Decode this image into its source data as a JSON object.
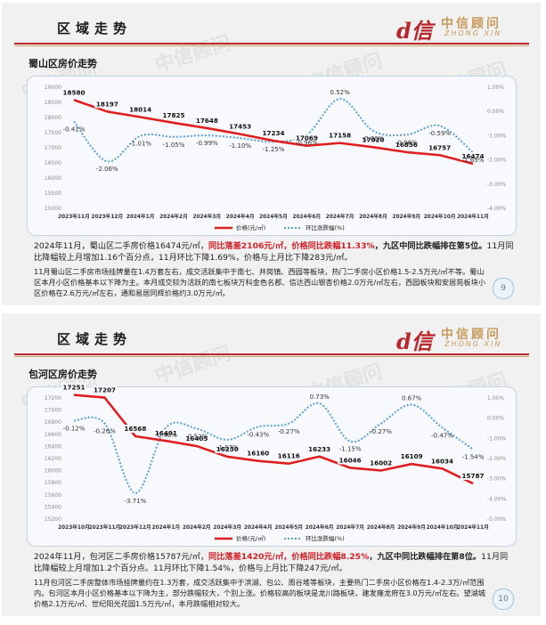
{
  "colors": {
    "price_line": "#e02020",
    "change_line": "#5aa0d8",
    "accent": "#b8272c",
    "gold": "#c79a5a"
  },
  "logo": {
    "mark": "d信",
    "cn": "中信顾问",
    "en": "ZHONG XIN"
  },
  "watermark": "中信顾问",
  "slides": [
    {
      "header": "区域走势",
      "chart_title": "蜀山区房价走势",
      "page_number": "9",
      "desc_line1": [
        {
          "t": "2024年11月，蜀山区二手房价格16474元/㎡，",
          "s": ""
        },
        {
          "t": "同比落差2106元/㎡，价格同比跌幅11.33%",
          "s": "hl"
        },
        {
          "t": "，九区中同比跌幅排在第5位。",
          "s": "b"
        },
        {
          "t": "11月同比降幅较上月增加1.16个百分点，11月环比下降1.69%，价格与上月比下降283元/㎡。",
          "s": ""
        }
      ],
      "desc_line2": "11月蜀山区二手房市场挂牌量在1.4万套左右，成交活跃集中于南七、井岗镇、西园等板块，热门二手房小区价格1.5-2.5万元/㎡不等。蜀山区本月小区价格基本以下降为主。本月成交较为活跃的南七板块万科金色名郡、信达西山银杏价格2.0万元/㎡左右，西园板块和安居苑板块小区价格在2.6万元/㎡左右，通和易居同辉价格约3.0万元/㎡。",
      "chart_data": {
        "type": "line",
        "categories": [
          "2023年11月",
          "2023年12月",
          "2024年1月",
          "2024年2月",
          "2024年3月",
          "2024年4月",
          "2024年5月",
          "2024年6月",
          "2024年7月",
          "2024年8月",
          "2024年9月",
          "2024年10月",
          "2024年11月"
        ],
        "series": [
          {
            "name": "价格(元/㎡)",
            "axis": "left",
            "values": [
              18580,
              18197,
              18014,
              17825,
              17648,
              17453,
              17234,
              17069,
              17158,
              17020,
              16856,
              16757,
              16474
            ],
            "labels": [
              "18580",
              "18197",
              "18014",
              "17825",
              "17648",
              "17453",
              "17234",
              "17069",
              "17158",
              "17020",
              "16856",
              "16757",
              "16474"
            ]
          },
          {
            "name": "环比涨跌幅(%)",
            "axis": "right",
            "values": [
              -0.41,
              -2.06,
              -1.01,
              -1.05,
              -0.99,
              -1.1,
              -1.25,
              -0.96,
              0.52,
              -0.8,
              -0.96,
              -0.59,
              -1.69
            ],
            "labels": [
              "-0.41%",
              "-2.06%",
              "-1.01%",
              "-1.05%",
              "-0.99%",
              "-1.10%",
              "-1.25%",
              "-0.96%",
              "0.52%",
              "-0.80%",
              "-0.96%",
              "-0.59%",
              "-1.69%"
            ]
          }
        ],
        "ylim": [
          15000,
          19000
        ],
        "yticks": [
          15000,
          15500,
          16000,
          16500,
          17000,
          17500,
          18000,
          18500,
          19000
        ],
        "ytick_labels": [
          "15000",
          "15500",
          "16000",
          "16500",
          "17000",
          "17500",
          "18000",
          "18500",
          "19000"
        ],
        "y2lim": [
          -4.0,
          1.0
        ],
        "y2ticks": [
          1.0,
          0.0,
          -1.0,
          -2.0,
          -3.0,
          -4.0
        ],
        "y2tick_labels": [
          "1.00%",
          "0.00%",
          "-1.00%",
          "-2.00%",
          "-3.00%",
          "-4.00%"
        ],
        "legend_position": "bottom",
        "grid": false
      }
    },
    {
      "header": "区域走势",
      "chart_title": "包河区房价走势",
      "page_number": "10",
      "desc_line1": [
        {
          "t": "2024年11月，包河区二手房价格15787元/㎡，",
          "s": ""
        },
        {
          "t": "同比落差1420元/㎡，价格同比跌幅8.25%",
          "s": "hl"
        },
        {
          "t": "，九区中同比跌幅排在第8位。",
          "s": "b"
        },
        {
          "t": "11月同比降幅较上月增加1.2个百分点。11月环比下降1.54%，价格与上月比下降247元/㎡。",
          "s": ""
        }
      ],
      "desc_line2": "11月包河区二手房整体市场挂牌量约在1.3万套，成交活跃集中于滨湖、包公、周谷堆等板块，主要热门二手房小区价格在1.4-2.3万/㎡范围内。包河区本月小区价格基本以下降为主，部分跌幅较大，个别上涨。价格较高的板块是龙川路板块，建发雍龙府在3.0万元/㎡左右。望湖城价格2.1万元/㎡、世纪阳光花园1.5万元/㎡，本月跌幅相对较大。",
      "chart_data": {
        "type": "line",
        "categories": [
          "2023年10月",
          "2023年11月",
          "2023年12月",
          "2024年1月",
          "2024年2月",
          "2024年3月",
          "2024年4月",
          "2024年5月",
          "2024年6月",
          "2024年7月",
          "2024年8月",
          "2024年9月",
          "2024年10月",
          "2024年11月"
        ],
        "series": [
          {
            "name": "价格(元/㎡)",
            "axis": "left",
            "values": [
              17251,
              17207,
              16568,
              16491,
              16405,
              16230,
              16160,
              16116,
              16233,
              16046,
              16002,
              16109,
              16034,
              15787
            ],
            "labels": [
              "17251",
              "17207",
              "16568",
              "16491",
              "16405",
              "16230",
              "16160",
              "16116",
              "16233",
              "16046",
              "16002",
              "16109",
              "16034",
              "15787"
            ]
          },
          {
            "name": "环比涨跌幅(%)",
            "axis": "right",
            "values": [
              -0.12,
              -0.26,
              -3.71,
              -0.46,
              -0.52,
              -1.07,
              -0.43,
              -0.27,
              0.73,
              -1.15,
              -0.27,
              0.67,
              -0.47,
              -1.54
            ],
            "labels": [
              "-0.12%",
              "-0.26%",
              "-3.71%",
              "-0.46%",
              "-0.52%",
              "-1.07%",
              "-0.43%",
              "-0.27%",
              "0.73%",
              "-1.15%",
              "-0.27%",
              "0.67%",
              "-0.47%",
              "-1.54%"
            ]
          }
        ],
        "ylim": [
          15200,
          17200
        ],
        "yticks": [
          15200,
          15400,
          15600,
          15800,
          16000,
          16200,
          16400,
          16600,
          16800,
          17000,
          17200
        ],
        "ytick_labels": [
          "15200",
          "15400",
          "15600",
          "15800",
          "16000",
          "16200",
          "16400",
          "16600",
          "16800",
          "17000",
          "17200"
        ],
        "y2lim": [
          -5.0,
          1.0
        ],
        "y2ticks": [
          1.0,
          0.0,
          -1.0,
          -2.0,
          -3.0,
          -4.0,
          -5.0
        ],
        "y2tick_labels": [
          "1.00%",
          "0.00%",
          "-1.00%",
          "-2.00%",
          "-3.00%",
          "-4.00%",
          "-5.00%"
        ],
        "legend_position": "bottom",
        "grid": false
      }
    }
  ]
}
